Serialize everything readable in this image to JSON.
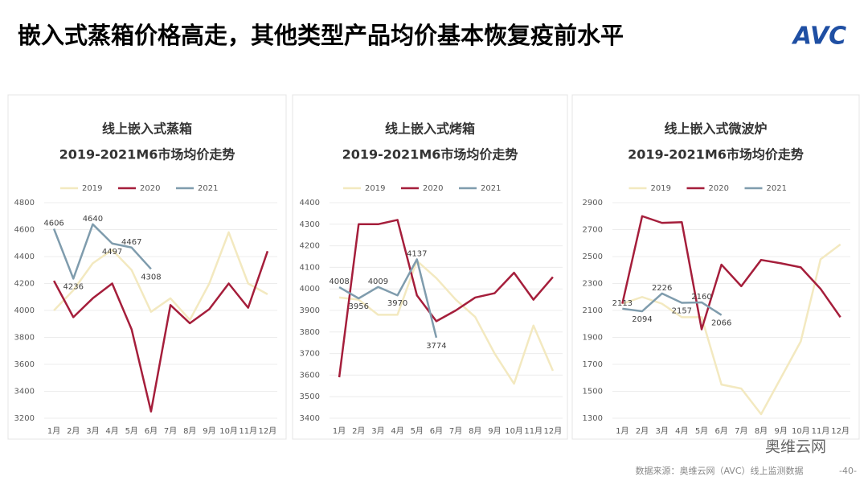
{
  "header": {
    "title": "嵌入式蒸箱价格高走，其他类型产品均价基本恢复疫前水平",
    "logo": "AVC"
  },
  "chart_data": [
    {
      "type": "line",
      "title": "线上嵌入式蒸箱",
      "subtitle": "2019-2021M6市场均价走势",
      "categories": [
        "1月",
        "2月",
        "3月",
        "4月",
        "5月",
        "6月",
        "7月",
        "8月",
        "9月",
        "10月",
        "11月",
        "12月"
      ],
      "series": [
        {
          "name": "2019",
          "color": "#f3e9c0",
          "values": [
            4000,
            4150,
            4350,
            4450,
            4300,
            3990,
            4090,
            3930,
            4200,
            4580,
            4200,
            4120
          ]
        },
        {
          "name": "2020",
          "color": "#a51e3b",
          "values": [
            4220,
            3950,
            4090,
            4200,
            3860,
            3250,
            4040,
            3905,
            4010,
            4200,
            4020,
            4440
          ]
        },
        {
          "name": "2021",
          "color": "#7f9cad",
          "values": [
            4606,
            4236,
            4640,
            4497,
            4467,
            4308,
            null,
            null,
            null,
            null,
            null,
            null
          ],
          "labels": true
        }
      ],
      "ylim": [
        3200,
        4800
      ],
      "yticks": [
        3200,
        3400,
        3600,
        3800,
        4000,
        4200,
        4400,
        4600,
        4800
      ],
      "grid": true,
      "legend": "top"
    },
    {
      "type": "line",
      "title": "线上嵌入式烤箱",
      "subtitle": "2019-2021M6市场均价走势",
      "categories": [
        "1月",
        "2月",
        "3月",
        "4月",
        "5月",
        "6月",
        "7月",
        "8月",
        "9月",
        "10月",
        "11月",
        "12月"
      ],
      "series": [
        {
          "name": "2019",
          "color": "#f3e9c0",
          "values": [
            3960,
            3950,
            3880,
            3880,
            4130,
            4050,
            3950,
            3870,
            3700,
            3560,
            3830,
            3620
          ]
        },
        {
          "name": "2020",
          "color": "#a51e3b",
          "values": [
            3590,
            4300,
            4300,
            4320,
            3970,
            3850,
            3900,
            3960,
            3980,
            4075,
            3950,
            4055
          ]
        },
        {
          "name": "2021",
          "color": "#7f9cad",
          "values": [
            4008,
            3956,
            4009,
            3970,
            4137,
            3774,
            null,
            null,
            null,
            null,
            null,
            null
          ],
          "labels": true
        }
      ],
      "ylim": [
        3400,
        4400
      ],
      "yticks": [
        3400,
        3500,
        3600,
        3700,
        3800,
        3900,
        4000,
        4100,
        4200,
        4300,
        4400
      ],
      "grid": true,
      "legend": "top"
    },
    {
      "type": "line",
      "title": "线上嵌入式微波炉",
      "subtitle": "2019-2021M6市场均价走势",
      "categories": [
        "1月",
        "2月",
        "3月",
        "4月",
        "5月",
        "6月",
        "7月",
        "8月",
        "9月",
        "10月",
        "11月",
        "12月"
      ],
      "series": [
        {
          "name": "2019",
          "color": "#f3e9c0",
          "values": [
            2150,
            2200,
            2150,
            2050,
            2050,
            1550,
            1520,
            1330,
            1600,
            1870,
            2480,
            2590
          ]
        },
        {
          "name": "2020",
          "color": "#a51e3b",
          "values": [
            2150,
            2800,
            2750,
            2755,
            1960,
            2440,
            2280,
            2475,
            2450,
            2420,
            2260,
            2050
          ]
        },
        {
          "name": "2021",
          "color": "#7f9cad",
          "values": [
            2113,
            2094,
            2226,
            2157,
            2160,
            2066,
            null,
            null,
            null,
            null,
            null,
            null
          ],
          "labels": true
        }
      ],
      "ylim": [
        1300,
        2900
      ],
      "yticks": [
        1300,
        1500,
        1700,
        1900,
        2100,
        2300,
        2500,
        2700,
        2900
      ],
      "grid": true,
      "legend": "top"
    }
  ],
  "footer": {
    "source": "数据来源：奥维云网（AVC）线上监测数据",
    "page": "-40-",
    "wechat": "奥维云网"
  }
}
